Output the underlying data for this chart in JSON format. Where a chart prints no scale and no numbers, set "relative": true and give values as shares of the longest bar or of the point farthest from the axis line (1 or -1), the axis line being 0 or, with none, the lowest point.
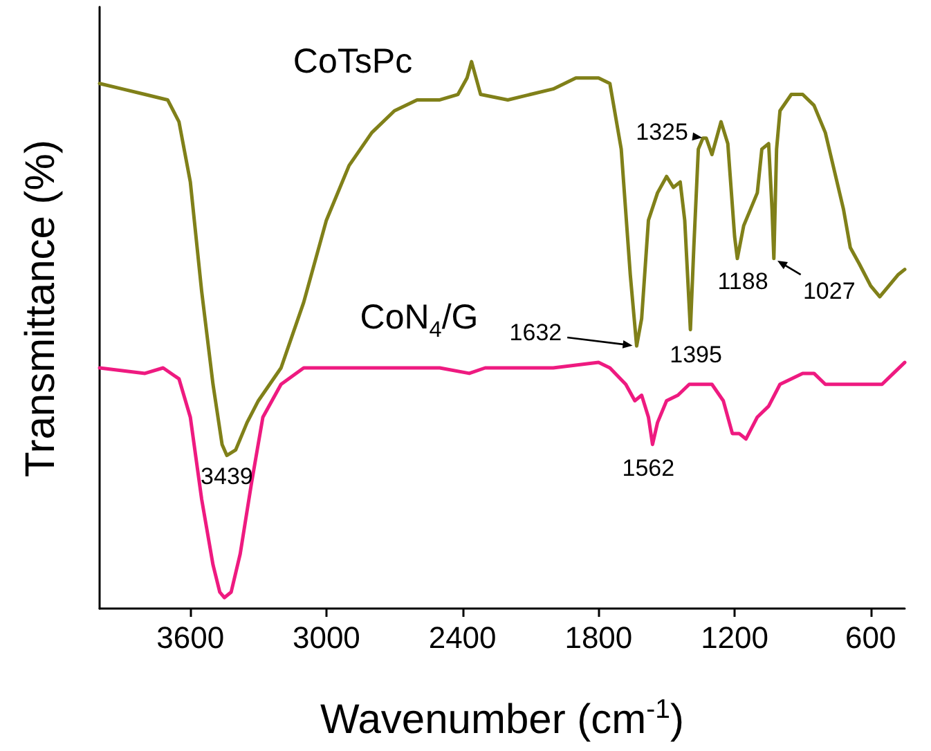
{
  "chart_data": {
    "type": "line",
    "relative": true,
    "xlabel": "Wavenumber (cm$^{-1}$)",
    "ylabel": "Transmittance (%)",
    "xlim": [
      4000,
      450
    ],
    "xticks": [
      3600,
      3000,
      2400,
      1800,
      1200,
      600
    ],
    "marker": "none",
    "line_style": "solid",
    "x": [
      4000,
      3900,
      3800,
      3700,
      3650,
      3600,
      3550,
      3500,
      3460,
      3439,
      3400,
      3350,
      3300,
      3250,
      3200,
      3100,
      3000,
      2900,
      2800,
      2700,
      2600,
      2500,
      2420,
      2380,
      2360,
      2340,
      2320,
      2200,
      2100,
      2000,
      1900,
      1800,
      1750,
      1700,
      1660,
      1632,
      1610,
      1580,
      1540,
      1500,
      1470,
      1440,
      1420,
      1395,
      1380,
      1360,
      1340,
      1325,
      1300,
      1260,
      1230,
      1200,
      1188,
      1160,
      1130,
      1100,
      1080,
      1050,
      1035,
      1027,
      1015,
      1000,
      950,
      900,
      850,
      800,
      760,
      720,
      690,
      650,
      600,
      560,
      520,
      480,
      450
    ],
    "series": [
      {
        "name": "CoTsPc",
        "color": "#808019",
        "values": [
          0.96,
          0.95,
          0.94,
          0.93,
          0.89,
          0.78,
          0.58,
          0.41,
          0.3,
          0.28,
          0.29,
          0.34,
          0.38,
          0.41,
          0.44,
          0.56,
          0.71,
          0.81,
          0.87,
          0.91,
          0.93,
          0.93,
          0.94,
          0.97,
          1.0,
          0.97,
          0.94,
          0.93,
          0.94,
          0.95,
          0.97,
          0.97,
          0.96,
          0.84,
          0.61,
          0.48,
          0.53,
          0.71,
          0.76,
          0.79,
          0.77,
          0.78,
          0.71,
          0.51,
          0.66,
          0.84,
          0.86,
          0.86,
          0.83,
          0.89,
          0.85,
          0.68,
          0.64,
          0.7,
          0.73,
          0.76,
          0.84,
          0.85,
          0.73,
          0.64,
          0.84,
          0.91,
          0.94,
          0.94,
          0.92,
          0.87,
          0.8,
          0.73,
          0.66,
          0.63,
          0.59,
          0.57,
          0.59,
          0.61,
          0.62
        ]
      },
      {
        "name": "CoN$_{4}$/G",
        "color": "#ee1a80",
        "x": [
          4000,
          3800,
          3720,
          3650,
          3600,
          3550,
          3500,
          3470,
          3450,
          3420,
          3380,
          3330,
          3280,
          3200,
          3100,
          3000,
          2800,
          2500,
          2370,
          2300,
          2000,
          1800,
          1750,
          1680,
          1640,
          1610,
          1580,
          1562,
          1540,
          1500,
          1450,
          1400,
          1300,
          1250,
          1210,
          1180,
          1150,
          1100,
          1050,
          1000,
          900,
          850,
          800,
          700,
          600,
          550,
          500,
          450
        ],
        "values": [
          0.44,
          0.43,
          0.44,
          0.42,
          0.35,
          0.2,
          0.08,
          0.03,
          0.02,
          0.03,
          0.1,
          0.23,
          0.35,
          0.41,
          0.44,
          0.44,
          0.44,
          0.44,
          0.43,
          0.44,
          0.44,
          0.45,
          0.44,
          0.41,
          0.38,
          0.39,
          0.35,
          0.3,
          0.34,
          0.38,
          0.39,
          0.41,
          0.41,
          0.38,
          0.32,
          0.32,
          0.31,
          0.35,
          0.37,
          0.41,
          0.43,
          0.43,
          0.41,
          0.41,
          0.41,
          0.41,
          0.43,
          0.45
        ]
      }
    ],
    "annotations": [
      {
        "text": "3439",
        "x": 3439,
        "y": 0.28
      },
      {
        "text": "1632",
        "x": 1632,
        "y": 0.48
      },
      {
        "text": "1395",
        "x": 1395,
        "y": 0.51
      },
      {
        "text": "1325",
        "x": 1325,
        "y": 0.86
      },
      {
        "text": "1188",
        "x": 1188,
        "y": 0.64
      },
      {
        "text": "1027",
        "x": 1027,
        "y": 0.64
      },
      {
        "text": "1562",
        "x": 1562,
        "y": 0.3
      }
    ]
  }
}
